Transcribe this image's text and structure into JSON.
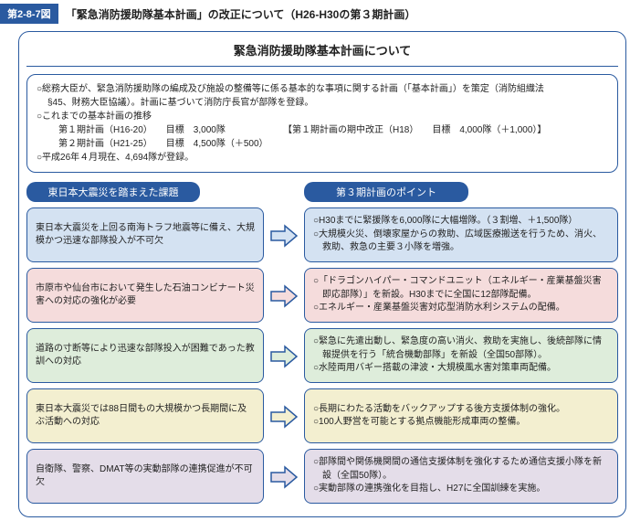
{
  "header": {
    "badge": "第2-8-7図",
    "title": "「緊急消防援助隊基本計画」の改正について（H26-H30の第３期計画）"
  },
  "section_title": "緊急消防援助隊基本計画について",
  "intro": {
    "line1": "○総務大臣が、緊急消防援助隊の編成及び施設の整備等に係る基本的な事項に関する計画（「基本計画」）を策定（消防組織法",
    "line1b": "§45、財務大臣協議）。計画に基づいて消防庁長官が部隊を登録。",
    "line2": "○これまでの基本計画の推移",
    "plan1_a": "第１期計画（H16-20）　　目標　3,000隊",
    "plan1_b": "【第１期計画の期中改正（H18）　　目標　4,000隊（＋1,000）】",
    "plan2": "第２期計画（H21-25）　　目標　4,500隊（＋500）",
    "line3": "○平成26年４月現在、4,694隊が登録。"
  },
  "left_header": "東日本大震災を踏まえた課題",
  "right_header": "第３期計画のポイント",
  "rows": [
    {
      "bg": "bg-blue",
      "left": "東日本大震災を上回る南海トラフ地震等に備え、大規模かつ迅速な部隊投入が不可欠",
      "right": [
        "○H30までに緊援隊を6,000隊に大幅増隊。（３割増、＋1,500隊）",
        "○大規模火災、倒壊家屋からの救助、広域医療搬送を行うため、消火、救助、救急の主要３小隊を増強。"
      ]
    },
    {
      "bg": "bg-pink",
      "left": "市原市や仙台市において発生した石油コンビナート災害への対応の強化が必要",
      "right": [
        "○「ドラゴンハイパー・コマンドユニット（エネルギー・産業基盤災害即応部隊）」を新設。H30までに全国に12部隊配備。",
        "○エネルギー・産業基盤災害対応型消防水利システムの配備。"
      ]
    },
    {
      "bg": "bg-green",
      "left": "道路の寸断等により迅速な部隊投入が困難であった教訓への対応",
      "right": [
        "○緊急に先遣出動し、緊急度の高い消火、救助を実施し、後続部隊に情報提供を行う「統合機動部隊」を新設（全国50部隊）。",
        "○水陸両用バギー搭載の津波・大規模風水害対策車両配備。"
      ]
    },
    {
      "bg": "bg-yellow",
      "left": "東日本大震災では88日間もの大規模かつ長期間に及ぶ活動への対応",
      "right": [
        "○長期にわたる活動をバックアップする後方支援体制の強化。",
        "○100人野営を可能とする拠点機能形成車両の整備。"
      ]
    },
    {
      "bg": "bg-purple",
      "left": "自衛隊、警察、DMAT等の実動部隊の連携促進が不可欠",
      "right": [
        "○部隊間や関係機関間の通信支援体制を強化するため通信支援小隊を新設（全国50隊）。",
        "○実動部隊の連携強化を目指し、H27に全国訓練を実施。"
      ]
    }
  ],
  "arrow_colors": {
    "bg-blue": {
      "fill": "#d4e2f2",
      "stroke": "#2a5aa0"
    },
    "bg-pink": {
      "fill": "#f5dcdc",
      "stroke": "#2a5aa0"
    },
    "bg-green": {
      "fill": "#deeddb",
      "stroke": "#2a5aa0"
    },
    "bg-yellow": {
      "fill": "#f3efd0",
      "stroke": "#2a5aa0"
    },
    "bg-purple": {
      "fill": "#e4dde9",
      "stroke": "#2a5aa0"
    }
  }
}
